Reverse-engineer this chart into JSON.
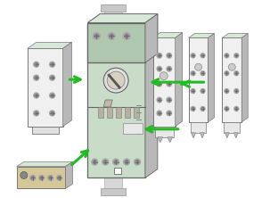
{
  "background_color": "#ffffff",
  "fig_width": 3.03,
  "fig_height": 2.22,
  "dpi": 100,
  "main_body_color": "#c8dcc8",
  "main_body_edge": "#666666",
  "rail_color": "#e0e0e0",
  "rail_edge": "#888888",
  "module_color": "#f0f0f0",
  "module_edge": "#777777",
  "shadow_color": "#c0c0c0",
  "top_face_color": "#d8e8d8",
  "right_face_color": "#b8b8b8",
  "green_arrow_color": "#22bb22",
  "red_arrow_color": "#dd1111",
  "arrow_lw": 2.2,
  "arrow_mutation": 12
}
